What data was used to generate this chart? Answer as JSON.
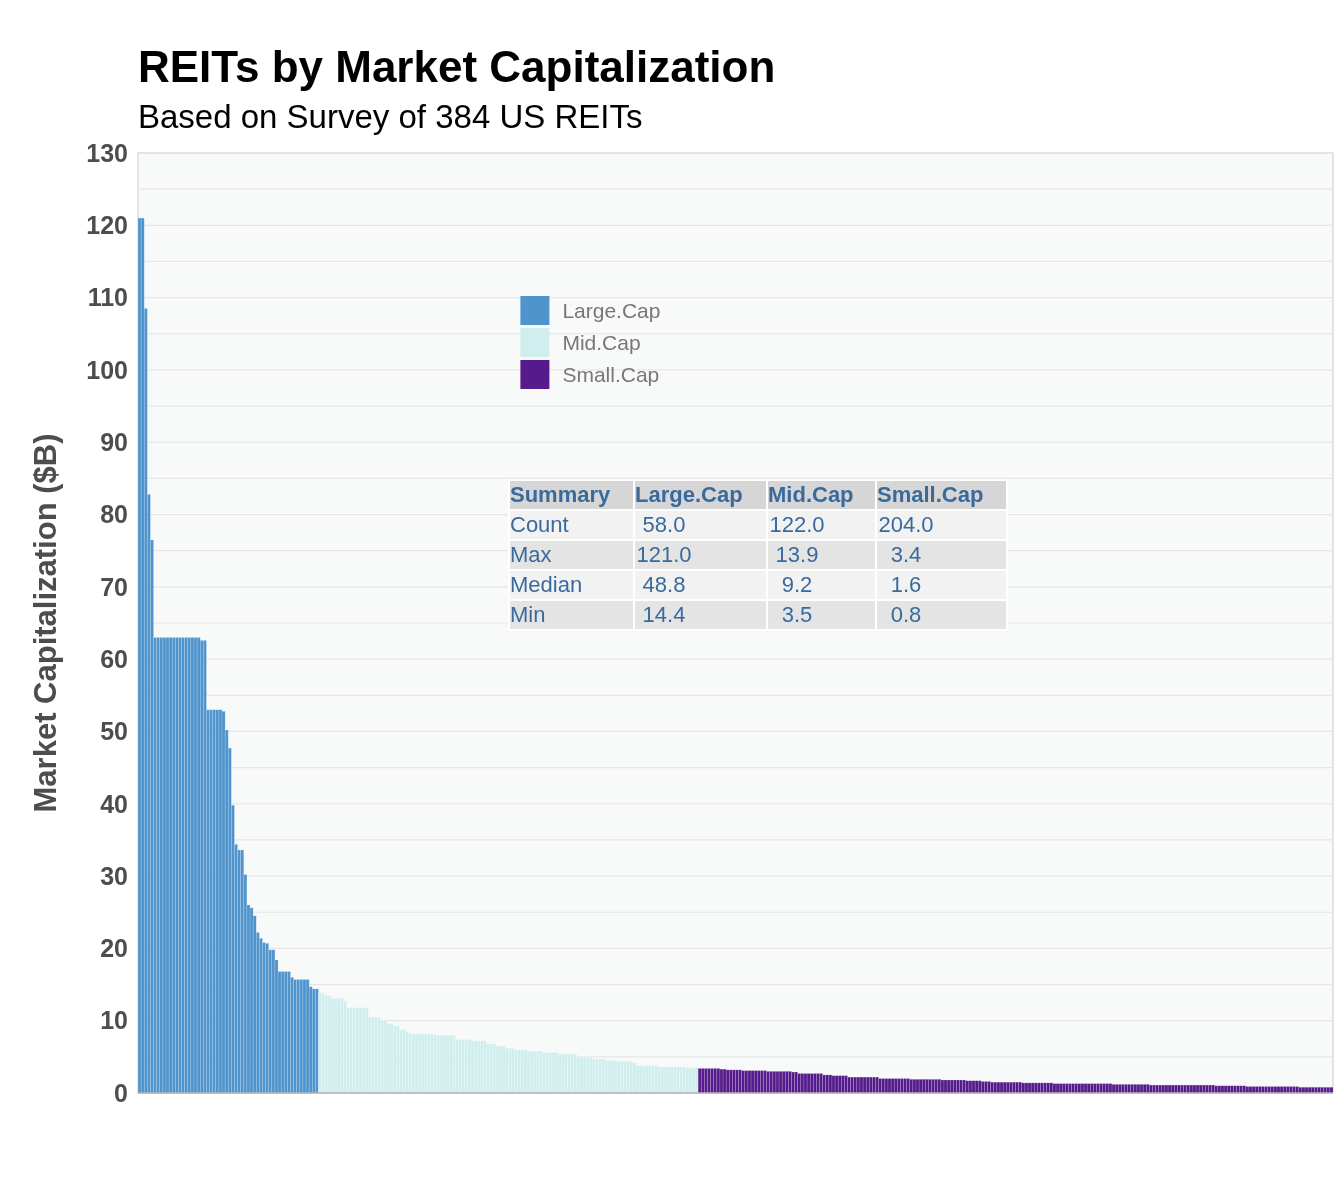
{
  "chart_data": {
    "type": "bar",
    "title": "REITs by Market Capitalization",
    "subtitle": "Based on Survey of 384 US REITs",
    "ylabel": "Market Capitalization ($B)",
    "categories": [
      null,
      null,
      null,
      null,
      null,
      null,
      null,
      null,
      null,
      null,
      null,
      null,
      null,
      null,
      null,
      null,
      null,
      null,
      null,
      null,
      null,
      null,
      null,
      null,
      null,
      null,
      null,
      null,
      null,
      null,
      null,
      null,
      null,
      null,
      null,
      null,
      null,
      null,
      null,
      null,
      null,
      null,
      null,
      null,
      null,
      null,
      null,
      null,
      null,
      null,
      null,
      null,
      null,
      null,
      null,
      null,
      null,
      null,
      null,
      null,
      null,
      null,
      null,
      null,
      null,
      null,
      null,
      null,
      null,
      null,
      null,
      null,
      null,
      null,
      null,
      null,
      null,
      null,
      null,
      null,
      null,
      null,
      null,
      null,
      null,
      null,
      null,
      null,
      null,
      null,
      null,
      null,
      null,
      null,
      null,
      null,
      null,
      null,
      null,
      null,
      null,
      null,
      null,
      null,
      null,
      null,
      null,
      null,
      null,
      null,
      null,
      null,
      null,
      null,
      null,
      null,
      null,
      null,
      null,
      null,
      null,
      null,
      null,
      null,
      null,
      null,
      null,
      null,
      null,
      null,
      null,
      null,
      null,
      null,
      null,
      null,
      null,
      null,
      null,
      null,
      null,
      null,
      null,
      null,
      null,
      null,
      null,
      null,
      null,
      null,
      null,
      null,
      null,
      null,
      null,
      null,
      null,
      null,
      null,
      null,
      null,
      null,
      null,
      null,
      null,
      null,
      null,
      null,
      null,
      null,
      null,
      null,
      null,
      null,
      null,
      null,
      null,
      null,
      null,
      null,
      null,
      null,
      null,
      null,
      null,
      null,
      null,
      null,
      null,
      null,
      null,
      null,
      null,
      null,
      null,
      null,
      null,
      null,
      null,
      null,
      null,
      null,
      null,
      null,
      null,
      null,
      null,
      null,
      null,
      null,
      null,
      null,
      null,
      null,
      null,
      null,
      null,
      null,
      null,
      null,
      null,
      null,
      null,
      null,
      null,
      null,
      null,
      null,
      null,
      null,
      null,
      null,
      null,
      null,
      null,
      null,
      null,
      null,
      null,
      null,
      null,
      null,
      null,
      null,
      null,
      null,
      null,
      null,
      null,
      null,
      null,
      null,
      null,
      null,
      null,
      null,
      null,
      null,
      null,
      null,
      null,
      null,
      null,
      null,
      null,
      null,
      null,
      null,
      null,
      null,
      null,
      null,
      null,
      null,
      null,
      null,
      null,
      null,
      null,
      null,
      null,
      null,
      null,
      null,
      null,
      null,
      null,
      null,
      null,
      null,
      null,
      null,
      null,
      null,
      null,
      null,
      null,
      null,
      null,
      null,
      null,
      null,
      null,
      null,
      null,
      null,
      null,
      null,
      null,
      null,
      null,
      null,
      null,
      null,
      null,
      null,
      null,
      null,
      null,
      null,
      null,
      null,
      null,
      null,
      null,
      null,
      null,
      null,
      null,
      null,
      null,
      null,
      null,
      null,
      null,
      null,
      null,
      null,
      null,
      null,
      null,
      null,
      null,
      null,
      null,
      null,
      null,
      null,
      null,
      null,
      null,
      null,
      null,
      null,
      null,
      null,
      null,
      null,
      null,
      null,
      null,
      null,
      null,
      null,
      null,
      null,
      null,
      null,
      null,
      null,
      null,
      null,
      null,
      null,
      null,
      null,
      null,
      null,
      null,
      null,
      null,
      null,
      null,
      null
    ],
    "series": [
      {
        "name": "Large.Cap",
        "color": "#5094cd",
        "values": [
          121,
          121,
          108.5,
          82.8,
          76.5,
          63,
          63,
          63,
          63,
          63,
          63,
          63,
          63,
          63,
          63,
          63,
          63,
          63,
          63,
          63,
          62.6,
          62.6,
          53,
          53,
          53,
          53,
          53,
          52.8,
          50.2,
          47.7,
          39.8,
          34.4,
          33.6,
          33.6,
          30.2,
          26,
          25.6,
          24.5,
          22.2,
          21.4,
          20.8,
          20.7,
          19.8,
          19.8,
          18.4,
          16.8,
          16.8,
          16.8,
          16.8,
          16,
          15.7,
          15.7,
          15.7,
          15.7,
          15.7,
          14.7,
          14.4,
          14.4,
          null,
          null,
          null,
          null,
          null,
          null,
          null,
          null,
          null,
          null,
          null,
          null,
          null,
          null,
          null,
          null,
          null,
          null,
          null,
          null,
          null,
          null,
          null,
          null,
          null,
          null,
          null,
          null,
          null,
          null,
          null,
          null,
          null,
          null,
          null,
          null,
          null,
          null,
          null,
          null,
          null,
          null,
          null,
          null,
          null,
          null,
          null,
          null,
          null,
          null,
          null,
          null,
          null,
          null,
          null,
          null,
          null,
          null,
          null,
          null,
          null,
          null,
          null,
          null,
          null,
          null,
          null,
          null,
          null,
          null,
          null,
          null,
          null,
          null,
          null,
          null,
          null,
          null,
          null,
          null,
          null,
          null,
          null,
          null,
          null,
          null,
          null,
          null,
          null,
          null,
          null,
          null,
          null,
          null,
          null,
          null,
          null,
          null,
          null,
          null,
          null,
          null,
          null,
          null,
          null,
          null,
          null,
          null,
          null,
          null,
          null,
          null,
          null,
          null,
          null,
          null,
          null,
          null,
          null,
          null,
          null,
          null,
          null,
          null,
          null,
          null,
          null,
          null,
          null,
          null,
          null,
          null,
          null,
          null,
          null,
          null,
          null,
          null,
          null,
          null,
          null,
          null,
          null,
          null,
          null,
          null,
          null,
          null,
          null,
          null,
          null,
          null,
          null,
          null,
          null,
          null,
          null,
          null,
          null,
          null,
          null,
          null,
          null,
          null,
          null,
          null,
          null,
          null,
          null,
          null,
          null,
          null,
          null,
          null,
          null,
          null,
          null,
          null,
          null,
          null,
          null,
          null,
          null,
          null,
          null,
          null,
          null,
          null,
          null,
          null,
          null,
          null,
          null,
          null,
          null,
          null,
          null,
          null,
          null,
          null,
          null,
          null,
          null,
          null,
          null,
          null,
          null,
          null,
          null,
          null,
          null,
          null,
          null,
          null,
          null,
          null,
          null,
          null,
          null,
          null,
          null,
          null,
          null,
          null,
          null,
          null,
          null,
          null,
          null,
          null,
          null,
          null,
          null,
          null,
          null,
          null,
          null,
          null,
          null,
          null,
          null,
          null,
          null,
          null,
          null,
          null,
          null,
          null,
          null,
          null,
          null,
          null,
          null,
          null,
          null,
          null,
          null,
          null,
          null,
          null,
          null,
          null,
          null,
          null,
          null,
          null,
          null,
          null,
          null,
          null,
          null,
          null,
          null,
          null,
          null,
          null,
          null,
          null,
          null,
          null,
          null,
          null,
          null,
          null,
          null,
          null,
          null,
          null,
          null,
          null,
          null,
          null,
          null,
          null,
          null,
          null,
          null,
          null,
          null,
          null,
          null,
          null,
          null,
          null,
          null,
          null,
          null,
          null,
          null,
          null,
          null,
          null,
          null,
          null,
          null,
          null,
          null,
          null,
          null,
          null,
          null,
          null,
          null,
          null,
          null,
          null
        ]
      },
      {
        "name": "Mid.Cap",
        "color": "#d1eeee",
        "values": [
          null,
          null,
          null,
          null,
          null,
          null,
          null,
          null,
          null,
          null,
          null,
          null,
          null,
          null,
          null,
          null,
          null,
          null,
          null,
          null,
          null,
          null,
          null,
          null,
          null,
          null,
          null,
          null,
          null,
          null,
          null,
          null,
          null,
          null,
          null,
          null,
          null,
          null,
          null,
          null,
          null,
          null,
          null,
          null,
          null,
          null,
          null,
          null,
          null,
          null,
          null,
          null,
          null,
          null,
          null,
          null,
          null,
          null,
          13.9,
          13.8,
          13.5,
          13.5,
          13.1,
          13.1,
          13.1,
          13.1,
          12.7,
          11.8,
          11.8,
          11.8,
          11.8,
          11.8,
          11.8,
          11.8,
          10.5,
          10.5,
          10.5,
          10.5,
          10,
          10,
          9.6,
          9.6,
          9.3,
          9.3,
          8.8,
          8.8,
          8.5,
          8.2,
          8.2,
          8.2,
          8.2,
          8.2,
          8.2,
          8.2,
          8.2,
          8,
          8,
          8,
          8,
          8,
          8,
          8,
          7.4,
          7.4,
          7.4,
          7.4,
          7.4,
          7.2,
          7.2,
          7.2,
          7.2,
          7.2,
          6.8,
          6.8,
          6.8,
          6.5,
          6.5,
          6.5,
          6.2,
          6.2,
          6.2,
          6,
          6,
          6,
          6,
          5.8,
          5.8,
          5.8,
          5.8,
          5.8,
          5.6,
          5.6,
          5.6,
          5.6,
          5.6,
          5.4,
          5.4,
          5.4,
          5.4,
          5.4,
          5.4,
          5,
          5,
          4.9,
          4.9,
          4.9,
          4.7,
          4.7,
          4.7,
          4.7,
          4.5,
          4.5,
          4.5,
          4.4,
          4.4,
          4.4,
          4.4,
          4.4,
          4.4,
          4.2,
          3.8,
          3.8,
          3.8,
          3.8,
          3.8,
          3.8,
          3.8,
          3.6,
          3.6,
          3.6,
          3.6,
          3.6,
          3.6,
          3.6,
          3.6,
          3.6,
          3.5,
          3.5,
          3.5,
          3.5,
          null,
          null,
          null,
          null,
          null,
          null,
          null,
          null,
          null,
          null,
          null,
          null,
          null,
          null,
          null,
          null,
          null,
          null,
          null,
          null,
          null,
          null,
          null,
          null,
          null,
          null,
          null,
          null,
          null,
          null,
          null,
          null,
          null,
          null,
          null,
          null,
          null,
          null,
          null,
          null,
          null,
          null,
          null,
          null,
          null,
          null,
          null,
          null,
          null,
          null,
          null,
          null,
          null,
          null,
          null,
          null,
          null,
          null,
          null,
          null,
          null,
          null,
          null,
          null,
          null,
          null,
          null,
          null,
          null,
          null,
          null,
          null,
          null,
          null,
          null,
          null,
          null,
          null,
          null,
          null,
          null,
          null,
          null,
          null,
          null,
          null,
          null,
          null,
          null,
          null,
          null,
          null,
          null,
          null,
          null,
          null,
          null,
          null,
          null,
          null,
          null,
          null,
          null,
          null,
          null,
          null,
          null,
          null,
          null,
          null,
          null,
          null,
          null,
          null,
          null,
          null,
          null,
          null,
          null,
          null,
          null,
          null,
          null,
          null,
          null,
          null,
          null,
          null,
          null,
          null,
          null,
          null,
          null,
          null,
          null,
          null,
          null,
          null,
          null,
          null,
          null,
          null,
          null,
          null,
          null,
          null,
          null,
          null,
          null,
          null,
          null,
          null,
          null,
          null,
          null,
          null,
          null,
          null,
          null,
          null,
          null,
          null,
          null,
          null,
          null,
          null,
          null,
          null,
          null,
          null,
          null,
          null,
          null,
          null,
          null,
          null,
          null,
          null,
          null,
          null,
          null,
          null,
          null,
          null,
          null,
          null,
          null,
          null,
          null,
          null,
          null,
          null,
          null,
          null,
          null,
          null,
          null,
          null,
          null,
          null,
          null,
          null,
          null,
          null
        ]
      },
      {
        "name": "Small.Cap",
        "color": "#551a8b",
        "values": [
          null,
          null,
          null,
          null,
          null,
          null,
          null,
          null,
          null,
          null,
          null,
          null,
          null,
          null,
          null,
          null,
          null,
          null,
          null,
          null,
          null,
          null,
          null,
          null,
          null,
          null,
          null,
          null,
          null,
          null,
          null,
          null,
          null,
          null,
          null,
          null,
          null,
          null,
          null,
          null,
          null,
          null,
          null,
          null,
          null,
          null,
          null,
          null,
          null,
          null,
          null,
          null,
          null,
          null,
          null,
          null,
          null,
          null,
          null,
          null,
          null,
          null,
          null,
          null,
          null,
          null,
          null,
          null,
          null,
          null,
          null,
          null,
          null,
          null,
          null,
          null,
          null,
          null,
          null,
          null,
          null,
          null,
          null,
          null,
          null,
          null,
          null,
          null,
          null,
          null,
          null,
          null,
          null,
          null,
          null,
          null,
          null,
          null,
          null,
          null,
          null,
          null,
          null,
          null,
          null,
          null,
          null,
          null,
          null,
          null,
          null,
          null,
          null,
          null,
          null,
          null,
          null,
          null,
          null,
          null,
          null,
          null,
          null,
          null,
          null,
          null,
          null,
          null,
          null,
          null,
          null,
          null,
          null,
          null,
          null,
          null,
          null,
          null,
          null,
          null,
          null,
          null,
          null,
          null,
          null,
          null,
          null,
          null,
          null,
          null,
          null,
          null,
          null,
          null,
          null,
          null,
          null,
          null,
          null,
          null,
          null,
          null,
          null,
          null,
          null,
          null,
          null,
          null,
          null,
          null,
          null,
          null,
          null,
          null,
          null,
          null,
          null,
          null,
          null,
          null,
          3.4,
          3.4,
          3.4,
          3.4,
          3.4,
          3.4,
          3.4,
          3.3,
          3.3,
          3.2,
          3.2,
          3.2,
          3.2,
          3.2,
          3.1,
          3.1,
          3.1,
          3.1,
          3.1,
          3.1,
          3.1,
          3.1,
          3,
          3,
          3,
          3,
          3,
          3,
          3,
          3,
          2.9,
          2.9,
          2.7,
          2.7,
          2.7,
          2.7,
          2.7,
          2.7,
          2.7,
          2.7,
          2.5,
          2.5,
          2.5,
          2.4,
          2.4,
          2.4,
          2.4,
          2.4,
          2.2,
          2.2,
          2.2,
          2.2,
          2.2,
          2.2,
          2.2,
          2.2,
          2.2,
          2.2,
          2,
          2,
          2,
          2,
          2,
          2,
          2,
          2,
          2,
          2,
          1.9,
          1.9,
          1.9,
          1.9,
          1.9,
          1.9,
          1.9,
          1.9,
          1.9,
          1.9,
          1.8,
          1.8,
          1.8,
          1.8,
          1.8,
          1.8,
          1.8,
          1.8,
          1.7,
          1.7,
          1.7,
          1.7,
          1.7,
          1.6,
          1.6,
          1.6,
          1.5,
          1.5,
          1.5,
          1.5,
          1.5,
          1.5,
          1.5,
          1.5,
          1.5,
          1.5,
          1.4,
          1.4,
          1.4,
          1.4,
          1.4,
          1.4,
          1.4,
          1.4,
          1.4,
          1.4,
          1.3,
          1.3,
          1.3,
          1.3,
          1.3,
          1.3,
          1.3,
          1.3,
          1.3,
          1.3,
          1.3,
          1.3,
          1.3,
          1.3,
          1.3,
          1.3,
          1.3,
          1.3,
          1.3,
          1.2,
          1.2,
          1.2,
          1.2,
          1.2,
          1.2,
          1.2,
          1.2,
          1.2,
          1.2,
          1.2,
          1.2,
          1.1,
          1.1,
          1.1,
          1.1,
          1.1,
          1.1,
          1.1,
          1.1,
          1.1,
          1.1,
          1.1,
          1.1,
          1.1,
          1.1,
          1.1,
          1.1,
          1.1,
          1.1,
          1.1,
          1.1,
          1.1,
          1,
          1,
          1,
          1,
          1,
          1,
          1,
          1,
          1,
          1,
          0.9,
          0.9,
          0.9,
          0.9,
          0.9,
          0.9,
          0.9,
          0.9,
          0.9,
          0.9,
          0.9,
          0.9,
          0.9,
          0.9,
          0.9,
          0.9,
          0.9,
          0.8,
          0.8,
          0.8,
          0.8,
          0.8,
          0.8,
          0.8,
          0.8,
          0.8,
          0.8,
          0.8
        ]
      }
    ],
    "ylim": [
      0,
      130
    ],
    "yticks": [
      0,
      {
        "value": 5,
        "label": null
      },
      10,
      {
        "value": 15,
        "label": null
      },
      20,
      {
        "value": 25,
        "label": null
      },
      30,
      {
        "value": 35,
        "label": null
      },
      40,
      {
        "value": 45,
        "label": null
      },
      50,
      {
        "value": 55,
        "label": null
      },
      60,
      {
        "value": 65,
        "label": null
      },
      70,
      {
        "value": 75,
        "label": null
      },
      80,
      {
        "value": 85,
        "label": null
      },
      90,
      {
        "value": 95,
        "label": null
      },
      100,
      {
        "value": 105,
        "label": null
      },
      110,
      {
        "value": 115,
        "label": null
      },
      120,
      {
        "value": 125,
        "label": null
      },
      130
    ],
    "grid": "y",
    "legend": "top",
    "tick_labels": "y",
    "annotations": [
      "Summary",
      "Large.Cap",
      "Mid.Cap",
      "Small.Cap",
      "Count",
      "58.0",
      "122.0",
      "204.0",
      "Max",
      "121.0",
      "13.9",
      "3.4",
      "Median",
      "48.8",
      "9.2",
      "1.6",
      "Min",
      "14.4",
      "3.5",
      "0.8"
    ]
  }
}
